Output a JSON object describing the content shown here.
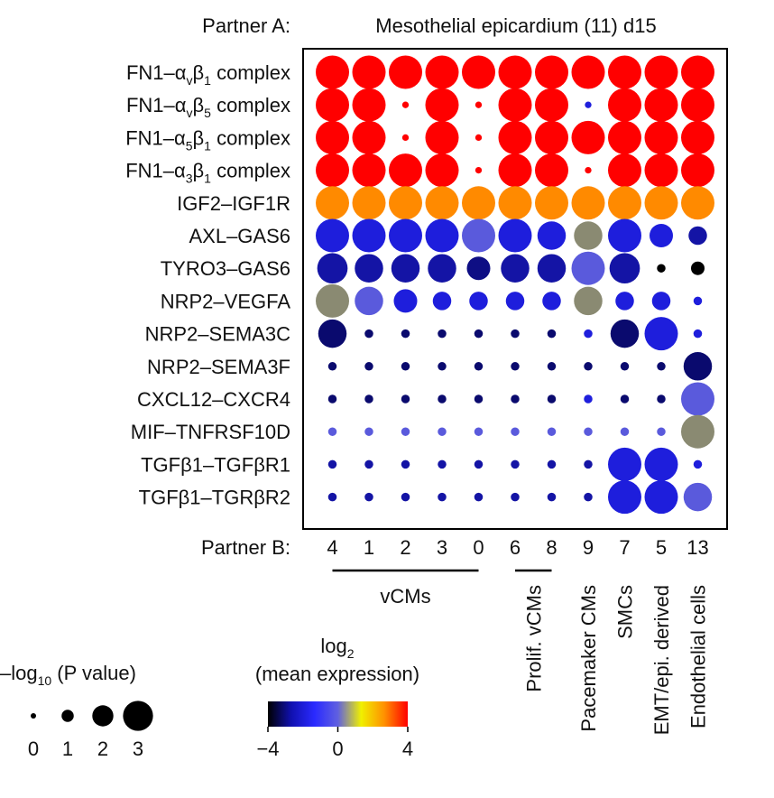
{
  "chart_data": {
    "type": "scatter",
    "subtype": "dot-plot",
    "title_label": "Partner A:",
    "title": "Mesothelial epicardium (11) d15",
    "xlabel": "Partner B:",
    "rows": [
      {
        "main": "FN1–α",
        "sub1": "v",
        "mid": "β",
        "sub2": "1",
        "tail": " complex"
      },
      {
        "main": "FN1–α",
        "sub1": "v",
        "mid": "β",
        "sub2": "5",
        "tail": " complex"
      },
      {
        "main": "FN1–α",
        "sub1": "5",
        "mid": "β",
        "sub2": "1",
        "tail": " complex"
      },
      {
        "main": "FN1–α",
        "sub1": "3",
        "mid": "β",
        "sub2": "1",
        "tail": " complex"
      },
      {
        "main": "IGF2–IGF1R"
      },
      {
        "main": "AXL–GAS6"
      },
      {
        "main": "TYRO3–GAS6"
      },
      {
        "main": "NRP2–VEGFA"
      },
      {
        "main": "NRP2–SEMA3C"
      },
      {
        "main": "NRP2–SEMA3F"
      },
      {
        "main": "CXCL12–CXCR4"
      },
      {
        "main": "MIF–TNFRSF10D"
      },
      {
        "main": "TGFβ1–TGFβR1"
      },
      {
        "main": "TGFβ1–TGRβR2"
      }
    ],
    "columns": [
      "4",
      "1",
      "2",
      "3",
      "0",
      "6",
      "8",
      "9",
      "7",
      "5",
      "13"
    ],
    "groups": [
      {
        "label": "vCMs",
        "from": 0,
        "to": 4,
        "orientation": "horizontal",
        "bracket": true
      },
      {
        "label": "Prolif. vCMs",
        "from": 5,
        "to": 6,
        "orientation": "vertical",
        "bracket": true
      },
      {
        "label": "Pacemaker CMs",
        "from": 7,
        "to": 7,
        "orientation": "vertical",
        "bracket": false
      },
      {
        "label": "SMCs",
        "from": 8,
        "to": 8,
        "orientation": "vertical",
        "bracket": false
      },
      {
        "label": "EMT/epi. derived",
        "from": 9,
        "to": 9,
        "orientation": "vertical",
        "bracket": false
      },
      {
        "label": "Endothelial cells",
        "from": 10,
        "to": 10,
        "orientation": "vertical",
        "bracket": false
      }
    ],
    "size_metric": "-log10(P value)",
    "size_range": [
      0,
      3
    ],
    "color_metric": "log2(mean expression)",
    "color_range": [
      -4,
      4
    ],
    "size_values": [
      [
        3,
        3,
        3,
        3,
        3,
        3,
        3,
        3,
        3,
        3,
        3
      ],
      [
        3,
        3,
        0.3,
        3,
        0.3,
        3,
        3,
        0.3,
        3,
        3,
        3
      ],
      [
        3,
        3,
        0.3,
        3,
        0.3,
        3,
        3,
        3,
        3,
        3,
        3
      ],
      [
        3,
        3,
        3,
        3,
        0.3,
        3,
        3,
        0.3,
        3,
        3,
        3
      ],
      [
        3,
        3,
        3,
        3,
        3,
        3,
        3,
        3,
        3,
        3,
        3
      ],
      [
        3,
        3,
        3,
        3,
        3,
        3,
        2.5,
        2.5,
        3,
        2,
        1.5
      ],
      [
        2.7,
        2.5,
        2.5,
        2.5,
        2,
        2.5,
        2.5,
        3,
        2.7,
        0.5,
        1
      ],
      [
        3,
        2.5,
        2,
        1.5,
        1.5,
        1.5,
        1.5,
        2.5,
        1.5,
        1.5,
        0.5
      ],
      [
        2.5,
        0.5,
        0.5,
        0.5,
        0.5,
        0.5,
        0.5,
        0.5,
        2.5,
        3,
        0.5
      ],
      [
        0.5,
        0.5,
        0.5,
        0.5,
        0.5,
        0.5,
        0.5,
        0.5,
        0.5,
        0.5,
        2.5
      ],
      [
        0.5,
        0.5,
        0.5,
        0.5,
        0.5,
        0.5,
        0.5,
        0.5,
        0.5,
        0.5,
        3
      ],
      [
        0.5,
        0.5,
        0.5,
        0.5,
        0.5,
        0.5,
        0.5,
        0.5,
        0.5,
        0.5,
        3
      ],
      [
        0.5,
        0.5,
        0.5,
        0.5,
        0.5,
        0.5,
        0.5,
        0.5,
        3,
        3,
        0.5
      ],
      [
        0.5,
        0.5,
        0.5,
        0.5,
        0.5,
        0.5,
        0.5,
        0.5,
        3,
        3,
        2.5
      ]
    ],
    "color_values": [
      [
        4,
        4,
        4,
        4,
        4,
        4,
        4,
        4,
        4,
        4,
        4
      ],
      [
        4,
        4,
        4,
        4,
        4,
        4,
        4,
        -2,
        4,
        4,
        4
      ],
      [
        4,
        4,
        4,
        4,
        4,
        4,
        4,
        4,
        4,
        4,
        4
      ],
      [
        4,
        4,
        4,
        4,
        4,
        4,
        4,
        4,
        4,
        4,
        4
      ],
      [
        3,
        3,
        3,
        3,
        3,
        3,
        3,
        3,
        3,
        3,
        3
      ],
      [
        -2,
        -2,
        -2,
        -2,
        -1.5,
        -2,
        -2,
        "na",
        -2,
        -2,
        -2.5
      ],
      [
        -2.5,
        -2.5,
        -2.5,
        -2.5,
        -2.8,
        -2.5,
        -2.5,
        -1.5,
        -2.5,
        -4,
        -4
      ],
      [
        "na",
        -1.5,
        -2,
        -2,
        -2,
        -2,
        -2,
        "na",
        -2,
        -2,
        -2
      ],
      [
        -3,
        -3,
        -3,
        -3,
        -3,
        -3,
        -3,
        -2,
        -3,
        -2,
        -2
      ],
      [
        -3,
        -3,
        -3,
        -3,
        -3,
        -3,
        -3,
        -3,
        -3,
        -3,
        -3
      ],
      [
        -3,
        -3,
        -3,
        -3,
        -3,
        -3,
        -3,
        -2,
        -3,
        -3,
        -1.5
      ],
      [
        -1.5,
        -1.5,
        -1.5,
        -1.5,
        -1.5,
        -1.5,
        -1.5,
        -1.5,
        -1.5,
        -1.5,
        "na"
      ],
      [
        -2.5,
        -2.5,
        -2.5,
        -2.5,
        -2.5,
        -2.5,
        -2.5,
        -2.5,
        -2,
        -2,
        -2
      ],
      [
        -2.5,
        -2.5,
        -2.5,
        -2.5,
        -2.5,
        -2.5,
        -2.5,
        -2.5,
        -2,
        -2,
        -1.5
      ]
    ],
    "na_color": "#8a8a72",
    "size_legend": {
      "title_main": "–log",
      "title_sub": "10",
      "title_rest": " (P value)",
      "values": [
        0,
        1,
        2,
        3
      ],
      "labels": [
        "0",
        "1",
        "2",
        "3"
      ]
    },
    "color_legend": {
      "title_line1": "log",
      "title_sub": "2",
      "title_line2": "(mean expression)",
      "ticks": [
        -4,
        0,
        4
      ],
      "tick_labels": [
        "−4",
        "0",
        "4"
      ],
      "colors": [
        "#000000",
        "#1010b0",
        "#2a2aff",
        "#6060e0",
        "#f0f000",
        "#ff9000",
        "#ff0000"
      ]
    },
    "palette": {
      "high": "#ff0000",
      "mid_high": "#ff8a00",
      "mid": "#f0f000",
      "low_mid": "#2a2aff",
      "low": "#000000"
    },
    "grid": false,
    "legend_position": "bottom-left"
  }
}
